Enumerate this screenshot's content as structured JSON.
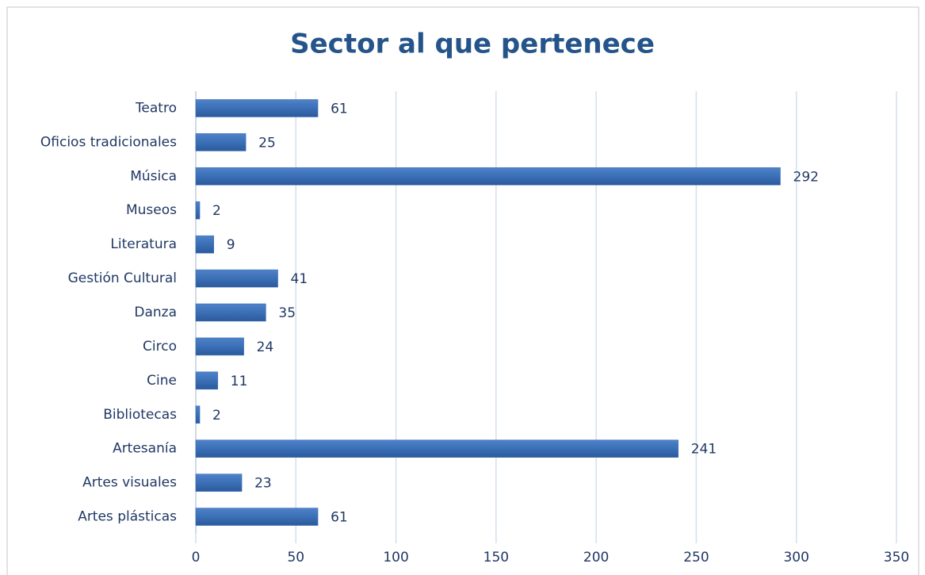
{
  "chart_data": {
    "type": "bar",
    "orientation": "horizontal",
    "title": "Sector al que pertenece",
    "categories": [
      "Teatro",
      "Oficios tradicionales",
      "Música",
      "Museos",
      "Literatura",
      "Gestión Cultural",
      "Danza",
      "Circo",
      "Cine",
      "Bibliotecas",
      "Artesanía",
      "Artes visuales",
      "Artes plásticas"
    ],
    "values": [
      61,
      25,
      292,
      2,
      9,
      41,
      35,
      24,
      11,
      2,
      241,
      23,
      61
    ],
    "color": "#3b6fb6",
    "xlim": [
      0,
      350
    ],
    "xticks": [
      0,
      50,
      100,
      150,
      200,
      250,
      300,
      350
    ],
    "grid": true
  }
}
